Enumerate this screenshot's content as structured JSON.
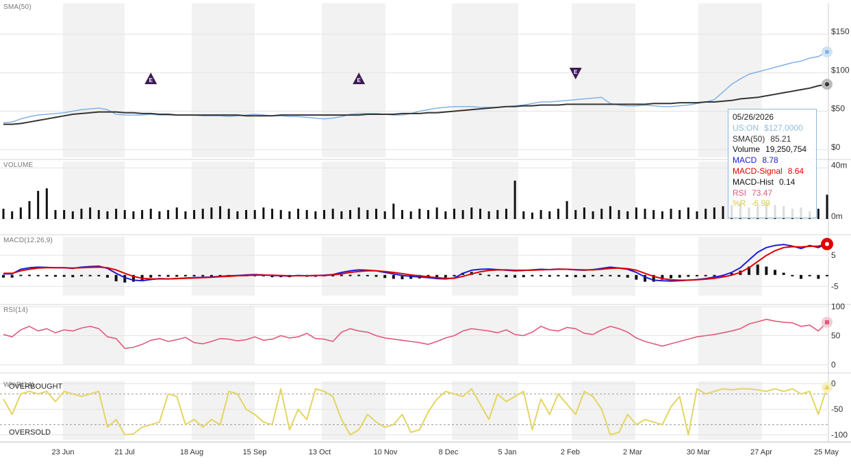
{
  "panels": {
    "price_label": "SMA(50)",
    "volume_label": "VOLUME",
    "macd_label": "MACD(12,26,9)",
    "rsi_label": "RSI(14)",
    "wr_label": "W%R(14)",
    "overbought_label": "OVERBOUGHT",
    "oversold_label": "OVERSOLD"
  },
  "tooltip": {
    "date": "05/26/2026",
    "price_name": "US:ON",
    "price_value": "$127.0000",
    "sma_name": "SMA(50)",
    "sma_value": "85.21",
    "volume_name": "Volume",
    "volume_value": "19,250,754",
    "macd_name": "MACD",
    "macd_value": "8.78",
    "signal_name": "MACD-Signal",
    "signal_value": "8.64",
    "hist_name": "MACD-Hist",
    "hist_value": "0.14",
    "rsi_name": "RSI",
    "rsi_value": "73.47",
    "wr_name": "%R",
    "wr_value": "-6.99"
  },
  "colors": {
    "price": "#7fb2e5",
    "sma": "#333333",
    "macd": "#1a1ad6",
    "signal": "#e00000",
    "hist": "#111111",
    "rsi": "#e05a7a",
    "wr": "#e3d463",
    "band": "#f2f2f2",
    "earnings": "#3d1a55"
  },
  "chart_data": [
    {
      "type": "line",
      "panel": "price",
      "title": "SMA(50)",
      "x_ticks": [
        "23 Jun",
        "21 Jul",
        "18 Aug",
        "15 Sep",
        "13 Oct",
        "10 Nov",
        "8 Dec",
        "5 Jan",
        "2 Feb",
        "2 Mar",
        "30 Mar",
        "27 Apr",
        "25 May"
      ],
      "y_ticks": [
        "$150",
        "$100",
        "$50",
        "$0"
      ],
      "ylim": [
        -10,
        190
      ],
      "series": [
        {
          "name": "US:ON",
          "values": [
            35,
            36,
            40,
            43,
            45,
            46,
            47,
            48,
            50,
            52,
            53,
            54,
            52,
            46,
            45,
            45,
            45,
            46,
            45,
            45,
            45,
            45,
            45,
            44,
            44,
            44,
            43,
            44,
            45,
            46,
            45,
            44,
            44,
            43,
            43,
            42,
            41,
            40,
            41,
            43,
            46,
            47,
            47,
            47,
            46,
            45,
            45,
            47,
            50,
            52,
            54,
            55,
            56,
            56,
            56,
            55,
            55,
            55,
            56,
            57,
            58,
            60,
            62,
            62,
            63,
            64,
            65,
            66,
            67,
            68,
            60,
            58,
            57,
            57,
            58,
            57,
            56,
            56,
            57,
            58,
            60,
            62,
            65,
            75,
            85,
            92,
            98,
            101,
            104,
            107,
            110,
            113,
            115,
            119,
            121,
            127
          ]
        },
        {
          "name": "SMA(50)",
          "values": [
            33,
            33,
            34,
            36,
            38,
            40,
            42,
            44,
            46,
            47,
            48,
            49,
            49,
            49,
            48,
            48,
            47,
            47,
            46,
            46,
            45,
            45,
            45,
            45,
            45,
            45,
            45,
            45,
            44,
            44,
            44,
            44,
            45,
            45,
            45,
            45,
            45,
            45,
            45,
            45,
            45,
            45,
            46,
            46,
            46,
            46,
            47,
            47,
            47,
            48,
            48,
            49,
            50,
            51,
            52,
            53,
            54,
            55,
            56,
            56,
            57,
            57,
            58,
            58,
            58,
            59,
            59,
            59,
            59,
            59,
            59,
            59,
            59,
            59,
            59,
            60,
            60,
            60,
            61,
            61,
            61,
            62,
            62,
            63,
            64,
            66,
            67,
            68,
            70,
            72,
            74,
            76,
            78,
            80,
            83,
            85
          ]
        }
      ],
      "earnings_markers": [
        {
          "label": "E",
          "direction": "up",
          "x_index": 17
        },
        {
          "label": "E",
          "direction": "up",
          "x_index": 41
        },
        {
          "label": "E",
          "direction": "down",
          "x_index": 66
        }
      ]
    },
    {
      "type": "bar",
      "panel": "volume",
      "title": "VOLUME",
      "y_ticks": [
        "40m",
        "0m"
      ],
      "ylim": [
        0,
        45
      ],
      "values": [
        8,
        6,
        9,
        14,
        22,
        24,
        7,
        7,
        6,
        8,
        9,
        7,
        6,
        8,
        7,
        6,
        7,
        8,
        6,
        7,
        9,
        6,
        7,
        8,
        9,
        10,
        8,
        6,
        7,
        7,
        9,
        8,
        7,
        6,
        8,
        7,
        6,
        7,
        8,
        6,
        7,
        9,
        7,
        8,
        6,
        12,
        7,
        6,
        8,
        7,
        9,
        6,
        8,
        7,
        9,
        8,
        6,
        7,
        8,
        30,
        6,
        5,
        7,
        6,
        8,
        14,
        7,
        9,
        6,
        8,
        10,
        7,
        6,
        9,
        8,
        7,
        6,
        8,
        7,
        9,
        6,
        8,
        9,
        10,
        11,
        12,
        9,
        10,
        12,
        11,
        10,
        8,
        9,
        6,
        8,
        19
      ]
    },
    {
      "type": "line",
      "panel": "macd",
      "title": "MACD(12,26,9)",
      "y_ticks": [
        "5",
        "-5"
      ],
      "ylim": [
        -8,
        11
      ],
      "series": [
        {
          "name": "MACD",
          "values": [
            -1.0,
            -1.0,
            0.5,
            1.0,
            1.2,
            1.1,
            1.0,
            1.0,
            0.8,
            1.2,
            1.4,
            1.5,
            0.8,
            -0.8,
            -2.2,
            -3.0,
            -3.2,
            -2.8,
            -2.5,
            -2.6,
            -2.5,
            -2.3,
            -2.2,
            -2.1,
            -2.0,
            -1.8,
            -1.6,
            -1.5,
            -1.3,
            -1.2,
            -1.3,
            -1.5,
            -1.6,
            -1.7,
            -1.5,
            -1.6,
            -1.5,
            -1.4,
            -1.2,
            -0.5,
            0.0,
            0.3,
            0.2,
            0.0,
            -0.5,
            -1.0,
            -1.5,
            -1.8,
            -2.0,
            -2.2,
            -2.5,
            -2.6,
            -2.3,
            -0.8,
            0.2,
            0.5,
            0.6,
            0.4,
            0.2,
            0.0,
            0.1,
            0.3,
            0.5,
            0.4,
            0.6,
            0.5,
            0.3,
            0.2,
            0.4,
            0.8,
            1.2,
            0.9,
            0.5,
            -0.5,
            -2.0,
            -3.0,
            -3.2,
            -3.3,
            -3.2,
            -3.0,
            -2.8,
            -2.5,
            -2.0,
            -1.5,
            -0.5,
            1.0,
            3.5,
            6.0,
            7.5,
            8.2,
            8.5,
            8.0,
            7.2,
            8.2,
            7.5,
            8.78
          ]
        },
        {
          "name": "MACD-Signal",
          "values": [
            -0.8,
            -0.8,
            0.0,
            0.5,
            0.9,
            1.0,
            1.0,
            1.0,
            0.9,
            1.0,
            1.1,
            1.2,
            1.0,
            0.3,
            -0.8,
            -1.8,
            -2.4,
            -2.6,
            -2.6,
            -2.6,
            -2.5,
            -2.4,
            -2.3,
            -2.2,
            -2.1,
            -1.9,
            -1.8,
            -1.6,
            -1.5,
            -1.4,
            -1.4,
            -1.4,
            -1.5,
            -1.6,
            -1.6,
            -1.6,
            -1.5,
            -1.5,
            -1.3,
            -1.0,
            -0.5,
            -0.2,
            0.0,
            0.0,
            -0.2,
            -0.5,
            -0.9,
            -1.3,
            -1.6,
            -1.9,
            -2.2,
            -2.4,
            -2.4,
            -1.8,
            -1.0,
            -0.3,
            0.1,
            0.3,
            0.3,
            0.2,
            0.2,
            0.2,
            0.3,
            0.4,
            0.5,
            0.5,
            0.4,
            0.3,
            0.3,
            0.5,
            0.8,
            0.9,
            0.7,
            0.2,
            -0.8,
            -1.8,
            -2.5,
            -2.9,
            -3.0,
            -3.0,
            -2.9,
            -2.7,
            -2.4,
            -2.0,
            -1.4,
            -0.5,
            1.0,
            3.0,
            5.0,
            6.5,
            7.5,
            7.8,
            7.7,
            7.9,
            8.0,
            8.64
          ]
        }
      ]
    },
    {
      "type": "line",
      "panel": "rsi",
      "title": "RSI(14)",
      "y_ticks": [
        "100",
        "50",
        "0"
      ],
      "ylim": [
        0,
        100
      ],
      "series": [
        {
          "name": "RSI",
          "values": [
            52,
            48,
            60,
            66,
            58,
            62,
            55,
            60,
            58,
            63,
            66,
            62,
            48,
            45,
            28,
            30,
            35,
            42,
            45,
            40,
            43,
            47,
            38,
            36,
            40,
            45,
            44,
            41,
            43,
            48,
            42,
            44,
            50,
            46,
            48,
            54,
            45,
            44,
            40,
            56,
            62,
            58,
            56,
            50,
            46,
            44,
            42,
            40,
            38,
            35,
            40,
            46,
            50,
            58,
            62,
            60,
            58,
            55,
            60,
            52,
            50,
            56,
            66,
            60,
            58,
            64,
            62,
            54,
            52,
            60,
            66,
            62,
            56,
            46,
            40,
            36,
            32,
            36,
            40,
            44,
            48,
            50,
            52,
            55,
            58,
            62,
            70,
            74,
            78,
            75,
            73,
            72,
            66,
            68,
            58,
            73
          ]
        }
      ]
    },
    {
      "type": "line",
      "panel": "wr",
      "title": "W%R(14)",
      "y_ticks": [
        "0",
        "-50",
        "-100"
      ],
      "ylim": [
        -110,
        5
      ],
      "series": [
        {
          "name": "%R",
          "values": [
            -30,
            -60,
            -20,
            -15,
            -20,
            -15,
            -35,
            -15,
            -20,
            -25,
            -20,
            -15,
            -85,
            -70,
            -100,
            -98,
            -85,
            -80,
            -75,
            -20,
            -25,
            -80,
            -70,
            -85,
            -70,
            -80,
            -15,
            -20,
            -50,
            -60,
            -75,
            -80,
            -10,
            -90,
            -50,
            -70,
            -10,
            -15,
            -25,
            -70,
            -100,
            -90,
            -60,
            -75,
            -85,
            -80,
            -60,
            -95,
            -90,
            -55,
            -30,
            -15,
            -20,
            -25,
            -10,
            -40,
            -70,
            -20,
            -35,
            -25,
            -15,
            -90,
            -30,
            -60,
            -20,
            -40,
            -60,
            -15,
            -25,
            -50,
            -100,
            -95,
            -60,
            -80,
            -70,
            -75,
            -80,
            -45,
            -25,
            -100,
            -10,
            -20,
            -15,
            -10,
            -12,
            -10,
            -10,
            -12,
            -15,
            -10,
            -15,
            -10,
            -20,
            -15,
            -60,
            -7
          ]
        }
      ]
    }
  ]
}
